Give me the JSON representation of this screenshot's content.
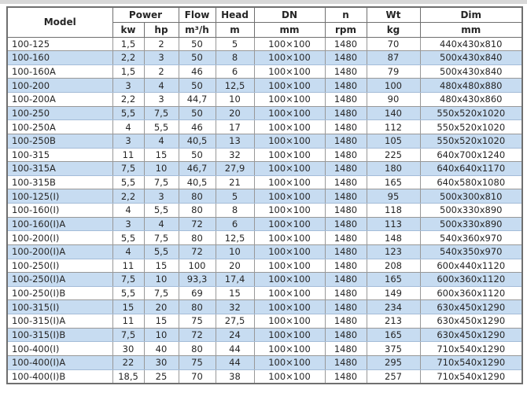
{
  "colors": {
    "stripe_blue": "#c7dcf1",
    "border_gray": "#989898",
    "outer_border": "#6f6f6f",
    "text": "#262626"
  },
  "table": {
    "columns": {
      "model": "Model",
      "power": "Power",
      "kw": "kw",
      "hp": "hp",
      "flow": "Flow",
      "flow_unit": "m³/h",
      "head": "Head",
      "head_unit": "m",
      "dn": "DN",
      "dn_unit": "mm",
      "n": "n",
      "n_unit": "rpm",
      "wt": "Wt",
      "wt_unit": "kg",
      "dim": "Dim",
      "dim_unit": "mm"
    },
    "rows": [
      {
        "model": "100-125",
        "kw": "1,5",
        "hp": "2",
        "flow": "50",
        "head": "5",
        "dn": "100×100",
        "rpm": "1480",
        "wt": "70",
        "dim": "440x430x810"
      },
      {
        "model": "100-160",
        "kw": "2,2",
        "hp": "3",
        "flow": "50",
        "head": "8",
        "dn": "100×100",
        "rpm": "1480",
        "wt": "87",
        "dim": "500x430x840"
      },
      {
        "model": "100-160A",
        "kw": "1,5",
        "hp": "2",
        "flow": "46",
        "head": "6",
        "dn": "100×100",
        "rpm": "1480",
        "wt": "79",
        "dim": "500x430x840"
      },
      {
        "model": "100-200",
        "kw": "3",
        "hp": "4",
        "flow": "50",
        "head": "12,5",
        "dn": "100×100",
        "rpm": "1480",
        "wt": "100",
        "dim": "480x480x880"
      },
      {
        "model": "100-200A",
        "kw": "2,2",
        "hp": "3",
        "flow": "44,7",
        "head": "10",
        "dn": "100×100",
        "rpm": "1480",
        "wt": "90",
        "dim": "480x430x860"
      },
      {
        "model": "100-250",
        "kw": "5,5",
        "hp": "7,5",
        "flow": "50",
        "head": "20",
        "dn": "100×100",
        "rpm": "1480",
        "wt": "140",
        "dim": "550x520x1020"
      },
      {
        "model": "100-250A",
        "kw": "4",
        "hp": "5,5",
        "flow": "46",
        "head": "17",
        "dn": "100×100",
        "rpm": "1480",
        "wt": "112",
        "dim": "550x520x1020"
      },
      {
        "model": "100-250B",
        "kw": "3",
        "hp": "4",
        "flow": "40,5",
        "head": "13",
        "dn": "100×100",
        "rpm": "1480",
        "wt": "105",
        "dim": "550x520x1020"
      },
      {
        "model": "100-315",
        "kw": "11",
        "hp": "15",
        "flow": "50",
        "head": "32",
        "dn": "100×100",
        "rpm": "1480",
        "wt": "225",
        "dim": "640x700x1240"
      },
      {
        "model": "100-315A",
        "kw": "7,5",
        "hp": "10",
        "flow": "46,7",
        "head": "27,9",
        "dn": "100×100",
        "rpm": "1480",
        "wt": "180",
        "dim": "640x640x1170"
      },
      {
        "model": "100-315B",
        "kw": "5,5",
        "hp": "7,5",
        "flow": "40,5",
        "head": "21",
        "dn": "100×100",
        "rpm": "1480",
        "wt": "165",
        "dim": "640x580x1080"
      },
      {
        "model": "100-125(I)",
        "kw": "2,2",
        "hp": "3",
        "flow": "80",
        "head": "5",
        "dn": "100×100",
        "rpm": "1480",
        "wt": "95",
        "dim": "500x300x810"
      },
      {
        "model": "100-160(I)",
        "kw": "4",
        "hp": "5,5",
        "flow": "80",
        "head": "8",
        "dn": "100×100",
        "rpm": "1480",
        "wt": "118",
        "dim": "500x330x890"
      },
      {
        "model": "100-160(I)A",
        "kw": "3",
        "hp": "4",
        "flow": "72",
        "head": "6",
        "dn": "100×100",
        "rpm": "1480",
        "wt": "113",
        "dim": "500x330x890"
      },
      {
        "model": "100-200(I)",
        "kw": "5,5",
        "hp": "7,5",
        "flow": "80",
        "head": "12,5",
        "dn": "100×100",
        "rpm": "1480",
        "wt": "148",
        "dim": "540x360x970"
      },
      {
        "model": "100-200(I)A",
        "kw": "4",
        "hp": "5,5",
        "flow": "72",
        "head": "10",
        "dn": "100×100",
        "rpm": "1480",
        "wt": "123",
        "dim": "540x350x970"
      },
      {
        "model": "100-250(I)",
        "kw": "11",
        "hp": "15",
        "flow": "100",
        "head": "20",
        "dn": "100×100",
        "rpm": "1480",
        "wt": "208",
        "dim": "600x440x1120"
      },
      {
        "model": "100-250(I)A",
        "kw": "7,5",
        "hp": "10",
        "flow": "93,3",
        "head": "17,4",
        "dn": "100×100",
        "rpm": "1480",
        "wt": "165",
        "dim": "600x360x1120"
      },
      {
        "model": "100-250(I)B",
        "kw": "5,5",
        "hp": "7,5",
        "flow": "69",
        "head": "15",
        "dn": "100×100",
        "rpm": "1480",
        "wt": "149",
        "dim": "600x360x1120"
      },
      {
        "model": "100-315(I)",
        "kw": "15",
        "hp": "20",
        "flow": "80",
        "head": "32",
        "dn": "100×100",
        "rpm": "1480",
        "wt": "234",
        "dim": "630x450x1290"
      },
      {
        "model": "100-315(I)A",
        "kw": "11",
        "hp": "15",
        "flow": "75",
        "head": "27,5",
        "dn": "100×100",
        "rpm": "1480",
        "wt": "213",
        "dim": "630x450x1290"
      },
      {
        "model": "100-315(I)B",
        "kw": "7,5",
        "hp": "10",
        "flow": "72",
        "head": "24",
        "dn": "100×100",
        "rpm": "1480",
        "wt": "165",
        "dim": "630x450x1290"
      },
      {
        "model": "100-400(I)",
        "kw": "30",
        "hp": "40",
        "flow": "80",
        "head": "44",
        "dn": "100×100",
        "rpm": "1480",
        "wt": "375",
        "dim": "710x540x1290"
      },
      {
        "model": "100-400(I)A",
        "kw": "22",
        "hp": "30",
        "flow": "75",
        "head": "44",
        "dn": "100×100",
        "rpm": "1480",
        "wt": "295",
        "dim": "710x540x1290"
      },
      {
        "model": "100-400(I)B",
        "kw": "18,5",
        "hp": "25",
        "flow": "70",
        "head": "38",
        "dn": "100×100",
        "rpm": "1480",
        "wt": "257",
        "dim": "710x540x1290"
      }
    ]
  }
}
